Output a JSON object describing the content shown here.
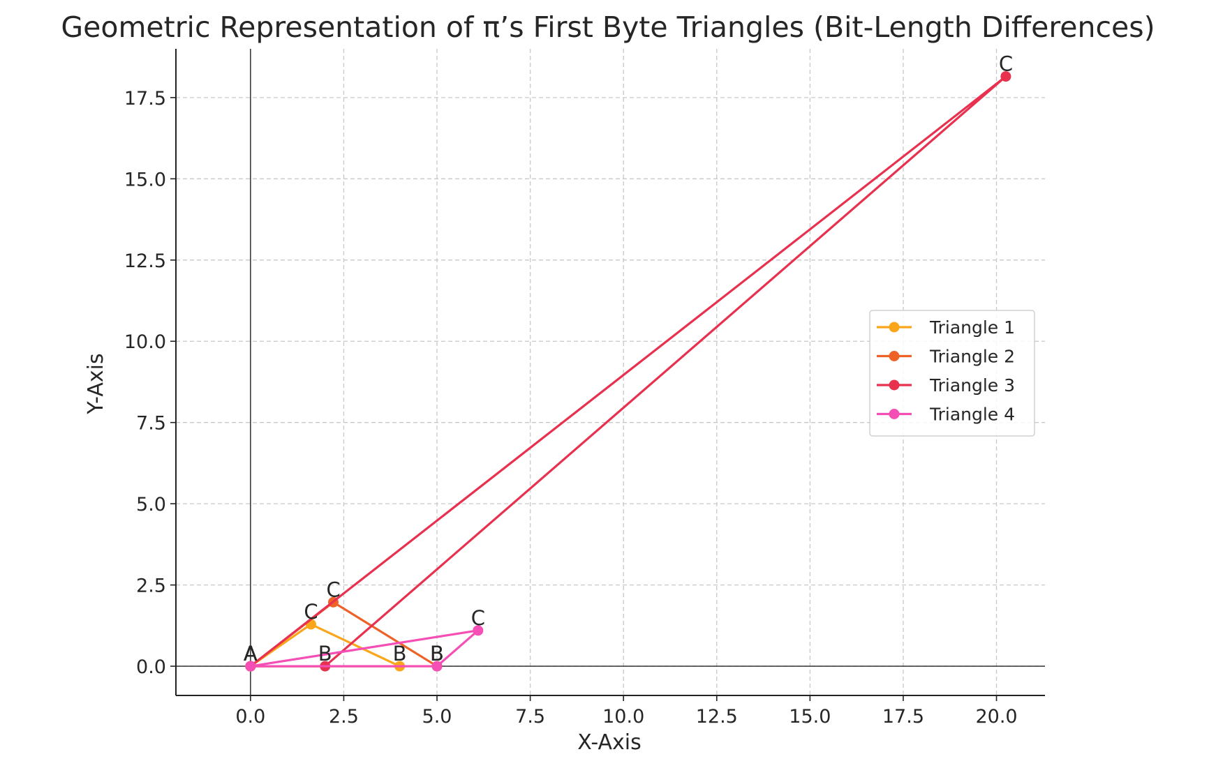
{
  "chart_data": {
    "type": "line",
    "title": "Geometric Representation of π’s First Byte Triangles (Bit-Length Differences)",
    "xlabel": "X-Axis",
    "ylabel": "Y-Axis",
    "xlim": [
      -2.0,
      21.3
    ],
    "ylim": [
      -0.9,
      19.0
    ],
    "xticks": [
      0.0,
      2.5,
      5.0,
      7.5,
      10.0,
      12.5,
      15.0,
      17.5,
      20.0
    ],
    "yticks": [
      0.0,
      2.5,
      5.0,
      7.5,
      10.0,
      12.5,
      15.0,
      17.5
    ],
    "xtick_labels": [
      "0.0",
      "2.5",
      "5.0",
      "7.5",
      "10.0",
      "12.5",
      "15.0",
      "17.5",
      "20.0"
    ],
    "ytick_labels": [
      "0.0",
      "2.5",
      "5.0",
      "7.5",
      "10.0",
      "12.5",
      "15.0",
      "17.5"
    ],
    "grid": true,
    "legend_position": "center-right",
    "series": [
      {
        "name": "Triangle 1",
        "color": "#FAA61A",
        "points": [
          {
            "label": "A",
            "x": 0.0,
            "y": 0.0
          },
          {
            "label": "B",
            "x": 4.0,
            "y": 0.0
          },
          {
            "label": "C",
            "x": 1.62,
            "y": 1.29
          },
          {
            "label": "",
            "x": 0.0,
            "y": 0.0
          }
        ]
      },
      {
        "name": "Triangle 2",
        "color": "#EE6127",
        "points": [
          {
            "label": "A",
            "x": 0.0,
            "y": 0.0
          },
          {
            "label": "B",
            "x": 5.0,
            "y": 0.0
          },
          {
            "label": "C",
            "x": 2.22,
            "y": 1.97
          },
          {
            "label": "",
            "x": 0.0,
            "y": 0.0
          }
        ]
      },
      {
        "name": "Triangle 3",
        "color": "#E8304F",
        "points": [
          {
            "label": "A",
            "x": 0.0,
            "y": 0.0
          },
          {
            "label": "B",
            "x": 2.0,
            "y": 0.0
          },
          {
            "label": "C",
            "x": 20.25,
            "y": 18.15
          },
          {
            "label": "",
            "x": 0.0,
            "y": 0.0
          }
        ]
      },
      {
        "name": "Triangle 4",
        "color": "#F54FB6",
        "points": [
          {
            "label": "A",
            "x": 0.0,
            "y": 0.0
          },
          {
            "label": "B",
            "x": 5.0,
            "y": 0.0
          },
          {
            "label": "C",
            "x": 6.1,
            "y": 1.1
          },
          {
            "label": "",
            "x": 0.0,
            "y": 0.0
          }
        ]
      }
    ]
  }
}
